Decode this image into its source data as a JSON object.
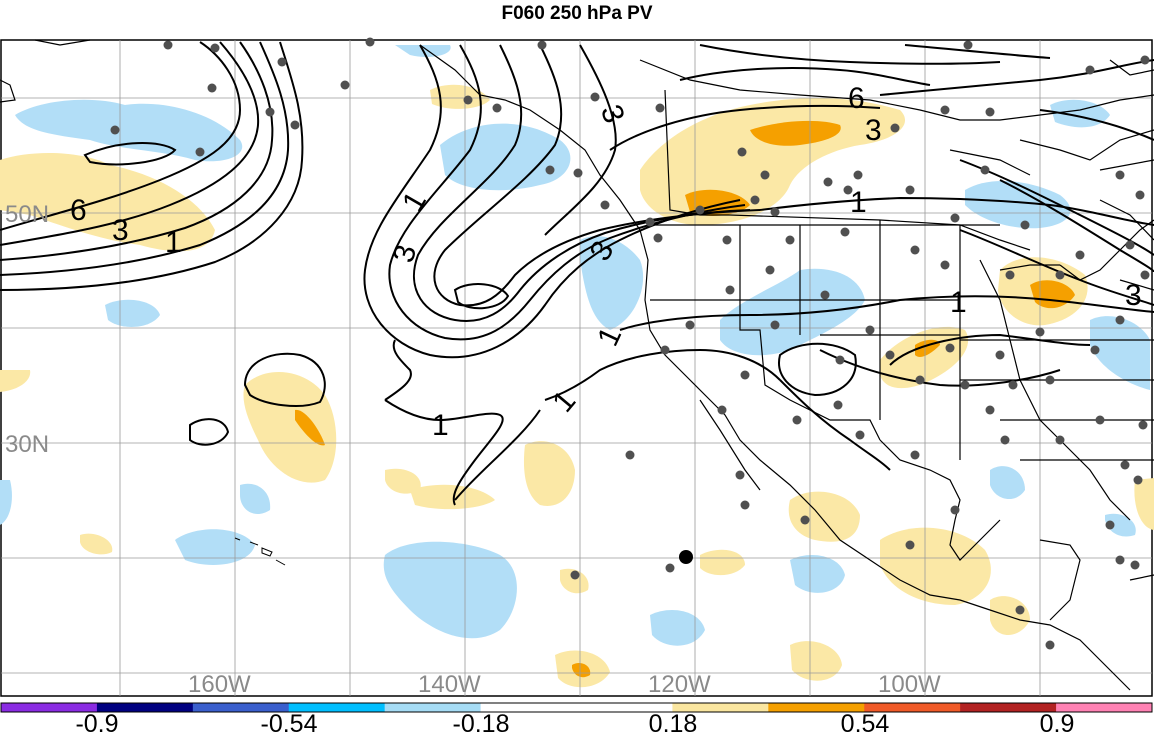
{
  "title": "F060 250 hPa PV",
  "map": {
    "lat_labels": [
      "50N",
      "30N"
    ],
    "lon_labels": [
      "160W",
      "140W",
      "120W",
      "100W"
    ],
    "contour_labels": [
      "6",
      "3",
      "1",
      "3",
      "1",
      "3",
      "1",
      "3",
      "1",
      "1",
      "1",
      "6",
      "3",
      "1",
      "3"
    ]
  },
  "colorbar": {
    "labels": [
      "-0.9",
      "-0.54",
      "-0.18",
      "0.18",
      "0.54",
      "0.9"
    ],
    "colors": [
      "#8a2be2",
      "#000080",
      "#3a5fcd",
      "#00bfff",
      "#a6dcf5",
      "#ffffff",
      "#ffffff",
      "#fae6a0",
      "#f5a000",
      "#f05a28",
      "#b22222",
      "#ff82b4"
    ]
  },
  "colors": {
    "negative_light": "#b2def7",
    "positive_light": "#fbe8a6",
    "positive_mid": "#f5a000"
  }
}
